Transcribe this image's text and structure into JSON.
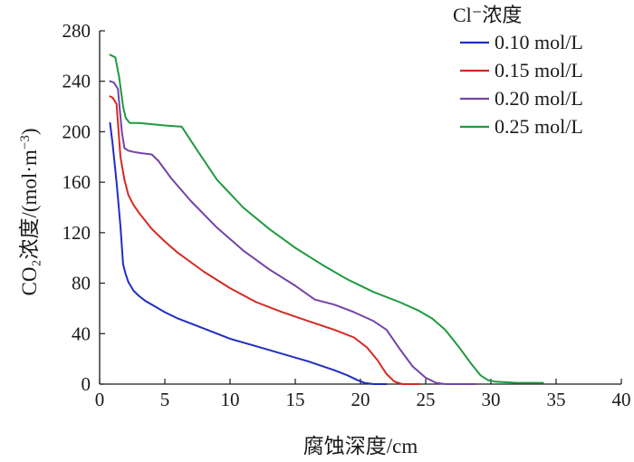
{
  "chart_data": {
    "type": "line",
    "xlabel": "腐蚀深度/cm",
    "ylabel_main": "CO₂浓度/(mol·m",
    "ylabel_sup": "−3",
    "ylabel_close": ")",
    "xlim": [
      0,
      40
    ],
    "ylim": [
      0,
      280
    ],
    "xticks": [
      0,
      5,
      10,
      15,
      20,
      25,
      30,
      35,
      40
    ],
    "yticks": [
      0,
      40,
      80,
      120,
      160,
      200,
      240,
      280
    ],
    "grid": false,
    "legend_title": "Cl⁻浓度",
    "legend_position": "top-right",
    "series": [
      {
        "name": "0.10 mol/L",
        "color": "#1f2ec0",
        "x": [
          0.8,
          1.0,
          1.3,
          1.6,
          1.8,
          2.0,
          2.2,
          2.6,
          3.0,
          3.5,
          4.0,
          5.0,
          6.0,
          8.0,
          10.0,
          12.0,
          14.0,
          16.0,
          18.0,
          19.0,
          19.8,
          20.3,
          21.0,
          22.0
        ],
        "y": [
          207,
          190,
          160,
          125,
          95,
          87,
          81,
          74,
          70,
          66,
          63,
          57,
          52,
          44,
          36,
          30,
          24,
          18,
          11,
          7,
          3,
          1,
          0,
          0
        ]
      },
      {
        "name": "0.15 mol/L",
        "color": "#d42a22",
        "x": [
          0.8,
          1.0,
          1.3,
          1.6,
          1.9,
          2.2,
          2.6,
          3.0,
          4.0,
          5.0,
          6.0,
          8.0,
          10.0,
          12.0,
          14.0,
          16.0,
          18.0,
          19.5,
          20.5,
          21.3,
          22.0,
          22.6,
          23.2,
          24.5
        ],
        "y": [
          228,
          227,
          222,
          180,
          162,
          150,
          142,
          136,
          123,
          113,
          104,
          89,
          76,
          65,
          57,
          50,
          43,
          37,
          29,
          19,
          8,
          2,
          0,
          0
        ]
      },
      {
        "name": "0.20 mol/L",
        "color": "#7443a8",
        "x": [
          0.8,
          1.1,
          1.4,
          1.7,
          1.9,
          2.2,
          2.6,
          3.2,
          4.0,
          4.5,
          5.5,
          7.0,
          9.0,
          11.0,
          13.0,
          15.0,
          16.5,
          18.0,
          19.5,
          21.0,
          22.0,
          23.0,
          24.0,
          25.0,
          25.8,
          26.5,
          28.8
        ],
        "y": [
          240,
          239,
          234,
          200,
          187,
          185,
          184,
          183,
          182,
          177,
          163,
          145,
          124,
          106,
          91,
          78,
          67,
          63,
          57,
          50,
          43,
          28,
          14,
          5,
          1,
          0,
          0
        ]
      },
      {
        "name": "0.25 mol/L",
        "color": "#1f9a3e",
        "x": [
          0.8,
          1.2,
          1.5,
          1.8,
          2.0,
          2.3,
          3.0,
          4.0,
          5.0,
          6.3,
          7.5,
          9.0,
          11.0,
          13.0,
          15.0,
          17.0,
          19.0,
          21.0,
          23.0,
          24.5,
          25.5,
          26.5,
          27.5,
          28.5,
          29.2,
          29.8,
          30.3,
          32.0,
          34.0
        ],
        "y": [
          261,
          259,
          243,
          220,
          211,
          207,
          207,
          206,
          205,
          204,
          185,
          162,
          140,
          123,
          108,
          95,
          83,
          73,
          65,
          58,
          52,
          43,
          30,
          16,
          7,
          3,
          2,
          1,
          1
        ]
      }
    ]
  }
}
